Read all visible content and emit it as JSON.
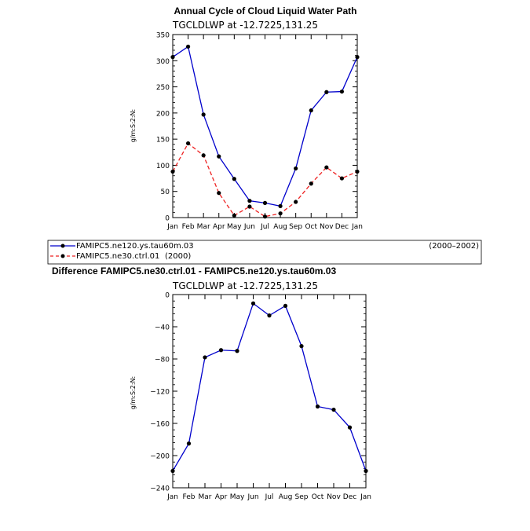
{
  "chart_data": [
    {
      "type": "line",
      "title": "Annual Cycle of Cloud Liquid Water Path",
      "subtitle": "TGCLDLWP at -12.7225,131.25",
      "ylabel": "g/m:S:2:N:",
      "categories": [
        "Jan",
        "Feb",
        "Mar",
        "Apr",
        "May",
        "Jun",
        "Jul",
        "Aug",
        "Sep",
        "Oct",
        "Nov",
        "Dec",
        "Jan"
      ],
      "ylim": [
        0,
        350
      ],
      "yticks": [
        "0",
        "50",
        "100",
        "150",
        "200",
        "250",
        "300",
        "350"
      ],
      "series": [
        {
          "name": "FAMIPC5.ne120.ys.tau60m.03",
          "period": "(2000–2002)",
          "color": "#0000cc",
          "dash": "solid",
          "values": [
            307,
            327,
            197,
            117,
            74,
            32,
            28,
            22,
            94,
            205,
            240,
            241,
            307
          ]
        },
        {
          "name": "FAMIPC5.ne30.ctrl.01",
          "period": "(2000)",
          "color": "#ee2222",
          "dash": "dashed",
          "values": [
            88,
            142,
            119,
            47,
            4,
            21,
            2,
            8,
            30,
            65,
            96,
            75,
            88
          ]
        }
      ]
    },
    {
      "type": "line",
      "title": "Difference FAMIPC5.ne30.ctrl.01 - FAMIPC5.ne120.ys.tau60m.03",
      "subtitle": "TGCLDLWP at -12.7225,131.25",
      "ylabel": "g/m:S:2:N:",
      "categories": [
        "Jan",
        "Feb",
        "Mar",
        "Apr",
        "May",
        "Jun",
        "Jul",
        "Aug",
        "Sep",
        "Oct",
        "Nov",
        "Dec",
        "Jan"
      ],
      "ylim": [
        -240,
        0
      ],
      "yticks": [
        "0",
        "−40",
        "−80",
        "−120",
        "−160",
        "−200",
        "−240"
      ],
      "series": [
        {
          "name": "",
          "color": "#0000cc",
          "dash": "solid",
          "values": [
            -219,
            -185,
            -78,
            -69,
            -70,
            -11,
            -26,
            -14,
            -64,
            -139,
            -143,
            -165,
            -219
          ]
        }
      ]
    }
  ]
}
